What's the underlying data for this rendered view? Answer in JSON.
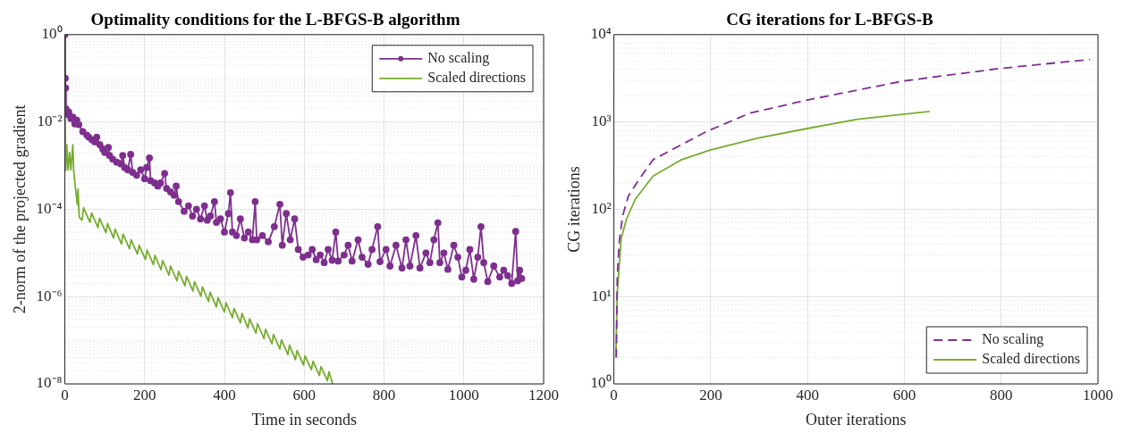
{
  "chart_data": [
    {
      "type": "line",
      "title": "Optimality conditions for the L-BFGS-B algorithm",
      "xlabel": "Time in seconds",
      "ylabel": "2-norm of the projected gradient",
      "log": "y",
      "grid": true,
      "legend": "top right",
      "xlim": [
        0,
        1200
      ],
      "xticks": [
        0,
        200,
        400,
        600,
        800,
        1000,
        1200
      ],
      "ylim": [
        1e-08,
        1
      ],
      "yticks": [
        {
          "value": 1,
          "label": "10⁰"
        },
        {
          "value": 0.01,
          "label": "10⁻²"
        },
        {
          "value": 0.0001,
          "label": "10⁻⁴"
        },
        {
          "value": 1e-06,
          "label": "10⁻⁶"
        },
        {
          "value": 1e-08,
          "label": "10⁻⁸"
        }
      ],
      "series": [
        {
          "name": "No scaling",
          "color": "#7e2f8e",
          "marker": "circle",
          "line_style": "solid",
          "x": [
            0,
            1,
            2,
            3,
            5,
            10,
            15,
            20,
            25,
            30,
            35,
            45,
            55,
            60,
            68,
            75,
            80,
            88,
            95,
            100,
            109,
            112,
            120,
            130,
            140,
            145,
            150,
            158,
            165,
            170,
            180,
            190,
            200,
            205,
            212,
            215,
            225,
            233,
            240,
            250,
            255,
            265,
            274,
            279,
            285,
            299,
            310,
            320,
            330,
            340,
            350,
            357,
            365,
            375,
            380,
            390,
            400,
            410,
            415,
            420,
            430,
            440,
            450,
            460,
            470,
            477,
            481,
            495,
            510,
            525,
            539,
            545,
            555,
            565,
            576,
            585,
            597,
            610,
            620,
            630,
            640,
            650,
            660,
            670,
            679,
            685,
            700,
            710,
            720,
            735,
            745,
            760,
            770,
            784,
            790,
            805,
            815,
            830,
            845,
            855,
            865,
            880,
            890,
            905,
            915,
            925,
            935,
            940,
            950,
            960,
            975,
            985,
            995,
            1005,
            1015,
            1025,
            1035,
            1043,
            1050,
            1060,
            1075,
            1090,
            1100,
            1110,
            1120,
            1130,
            1135,
            1140,
            1145
          ],
          "values": [
            1,
            0.1,
            0.06,
            0.02,
            0.015,
            0.0167,
            0.012,
            0.013,
            0.009,
            0.011,
            0.0087,
            0.006,
            0.005,
            0.0045,
            0.0039,
            0.0035,
            0.0045,
            0.003,
            0.0024,
            0.002,
            0.0026,
            0.0017,
            0.0014,
            0.0012,
            0.0011,
            0.0017,
            0.0009,
            0.0008,
            0.0018,
            0.0007,
            0.0006,
            0.0008,
            0.0005,
            0.0009,
            0.0015,
            0.00045,
            0.0004,
            0.00034,
            0.0004,
            0.00066,
            0.0003,
            0.00025,
            0.00021,
            0.00034,
            0.00015,
            9e-05,
            0.00012,
            7e-05,
            0.0001,
            6e-05,
            0.00012,
            5.6e-05,
            7e-05,
            0.00015,
            5e-05,
            6e-05,
            3e-05,
            8e-05,
            0.00024,
            3e-05,
            2.5e-05,
            6e-05,
            2.2e-05,
            3e-05,
            2e-05,
            0.00015,
            2e-05,
            2.5e-05,
            1.8e-05,
            4e-05,
            0.00013,
            1.5e-05,
            8e-05,
            2e-05,
            6e-05,
            1.2e-05,
            8e-06,
            9e-06,
            1.2e-05,
            7e-06,
            9e-06,
            6e-06,
            1.2e-05,
            6.8e-06,
            3e-05,
            6.5e-06,
            9e-06,
            1.5e-05,
            6.5e-06,
            2e-05,
            8e-06,
            5.5e-06,
            1.2e-05,
            4e-05,
            6.3e-06,
            1.2e-05,
            5e-06,
            1.5e-05,
            4.5e-06,
            2e-05,
            5e-06,
            2.5e-05,
            4.5e-06,
            1e-05,
            6e-06,
            2e-05,
            4.9e-05,
            6e-06,
            1e-05,
            4.2e-06,
            1.5e-05,
            8e-06,
            2.8e-06,
            4e-06,
            1.2e-05,
            2.5e-06,
            8e-06,
            4e-05,
            6e-06,
            2.2e-06,
            5e-06,
            2.8e-06,
            4e-06,
            3e-06,
            2e-06,
            3.1e-05,
            2.3e-06,
            4e-06,
            2.6e-06
          ]
        },
        {
          "name": "Scaled directions",
          "color": "#77ac30",
          "marker": "none",
          "line_style": "solid",
          "x": [
            0,
            2,
            5,
            8,
            12,
            15,
            20,
            22,
            26,
            31,
            33,
            36,
            43,
            47,
            63,
            67,
            83,
            87,
            103,
            107,
            122,
            126,
            142,
            146,
            162,
            166,
            182,
            186,
            202,
            206,
            222,
            226,
            241,
            245,
            261,
            265,
            281,
            285,
            301,
            305,
            321,
            325,
            341,
            345,
            360,
            364,
            380,
            384,
            400,
            404,
            420,
            424,
            440,
            444,
            459,
            463,
            479,
            483,
            499,
            503,
            519,
            523,
            539,
            543,
            559,
            563,
            578,
            582,
            598,
            602,
            618,
            622,
            638,
            642,
            658,
            662,
            671
          ],
          "values": [
            1,
            0.00076,
            0.003,
            0.0008,
            0.002,
            0.0008,
            0.003,
            0.0008,
            0.00034,
            0.00013,
            0.00029,
            6.6e-05,
            5.6e-05,
            0.000108,
            5e-05,
            8.2e-05,
            3.8e-05,
            6.2e-05,
            2.9e-05,
            4.7e-05,
            2.2e-05,
            3.5e-05,
            1.6e-05,
            2.7e-05,
            1.25e-05,
            2e-05,
            9.4e-06,
            1.5e-05,
            7.1e-06,
            1.16e-05,
            5.4e-06,
            8.8e-06,
            4.1e-06,
            6.7e-06,
            3.1e-06,
            5e-06,
            2.3e-06,
            3.8e-06,
            1.77e-06,
            2.9e-06,
            1.34e-06,
            2.2e-06,
            1.02e-06,
            1.66e-06,
            7.7e-07,
            1.25e-06,
            5.8e-07,
            9.5e-07,
            4.4e-07,
            7.2e-07,
            3.3e-07,
            5.4e-07,
            2.5e-07,
            4.1e-07,
            1.91e-07,
            3.1e-07,
            1.45e-07,
            2.4e-07,
            1.09e-07,
            1.78e-07,
            8.3e-08,
            1.35e-07,
            6.3e-08,
            1.02e-07,
            4.7e-08,
            7.7e-08,
            3.6e-08,
            5.8e-08,
            2.7e-08,
            4.4e-08,
            2.1e-08,
            3.3e-08,
            1.56e-08,
            2.5e-08,
            1.18e-08,
            1.9e-08,
            1e-08
          ]
        }
      ]
    },
    {
      "type": "line",
      "title": "CG iterations for L-BFGS-B",
      "xlabel": "Outer iterations",
      "ylabel": "CG iterations",
      "log": "y",
      "grid": true,
      "legend": "bottom right",
      "xlim": [
        0,
        1000
      ],
      "xticks": [
        0,
        200,
        400,
        600,
        800,
        1000
      ],
      "ylim": [
        1,
        10000
      ],
      "yticks": [
        {
          "value": 1,
          "label": "10⁰"
        },
        {
          "value": 10,
          "label": "10¹"
        },
        {
          "value": 100,
          "label": "10²"
        },
        {
          "value": 1000,
          "label": "10³"
        },
        {
          "value": 10000,
          "label": "10⁴"
        }
      ],
      "series": [
        {
          "name": "No scaling",
          "color": "#7e2f8e",
          "marker": "none",
          "line_style": "dashed",
          "x": [
            5,
            7,
            11,
            18,
            30,
            52,
            81,
            133,
            192,
            281,
            399,
            599,
            798,
            983
          ],
          "values": [
            2,
            17,
            42,
            84,
            142,
            220,
            370,
            525,
            780,
            1260,
            1780,
            2950,
            4100,
            5200
          ]
        },
        {
          "name": "Scaled directions",
          "color": "#77ac30",
          "marker": "none",
          "line_style": "solid",
          "x": [
            4,
            7,
            15,
            26,
            44,
            81,
            140,
            200,
            296,
            399,
            503,
            652
          ],
          "values": [
            2,
            11,
            46,
            77,
            130,
            240,
            370,
            480,
            650,
            840,
            1070,
            1320
          ]
        }
      ]
    }
  ]
}
